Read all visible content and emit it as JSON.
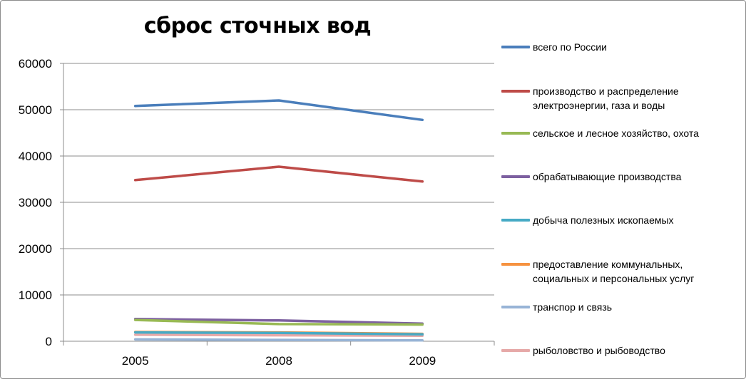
{
  "chart_data": {
    "type": "line",
    "title": "сброс сточных вод",
    "categories": [
      "2005",
      "2008",
      "2009"
    ],
    "ylim": [
      0,
      60000
    ],
    "yticks": [
      "0",
      "10000",
      "20000",
      "30000",
      "40000",
      "50000",
      "60000"
    ],
    "ytick_values": [
      0,
      10000,
      20000,
      30000,
      40000,
      50000,
      60000
    ],
    "grid": "horizontal",
    "legend_position": "right",
    "series": [
      {
        "name": "всего по России",
        "color": "#4a7ebb",
        "values": [
          50800,
          52000,
          47800
        ]
      },
      {
        "name": "производство и распределение электроэнергии, газа и воды",
        "color": "#be4b48",
        "values": [
          34800,
          37700,
          34500
        ]
      },
      {
        "name": "сельское и лесное хозяйство, охота",
        "color": "#98b954",
        "values": [
          4600,
          3700,
          3600
        ]
      },
      {
        "name": "обрабатывающие производства",
        "color": "#7d60a0",
        "values": [
          4800,
          4500,
          3800
        ]
      },
      {
        "name": "добыча полезных ископаемых",
        "color": "#46aac5",
        "values": [
          1900,
          1800,
          1500
        ]
      },
      {
        "name": "предоставление коммунальных, социальных и персональных услуг",
        "color": "#f69240",
        "values": [
          2000,
          1900,
          1600
        ]
      },
      {
        "name": "транспор и связь",
        "color": "#98b4d6",
        "values": [
          400,
          300,
          200
        ]
      },
      {
        "name": "рыболовство и рыбоводство",
        "color": "#e6a9a8",
        "values": [
          1400,
          1300,
          1200
        ]
      }
    ]
  }
}
